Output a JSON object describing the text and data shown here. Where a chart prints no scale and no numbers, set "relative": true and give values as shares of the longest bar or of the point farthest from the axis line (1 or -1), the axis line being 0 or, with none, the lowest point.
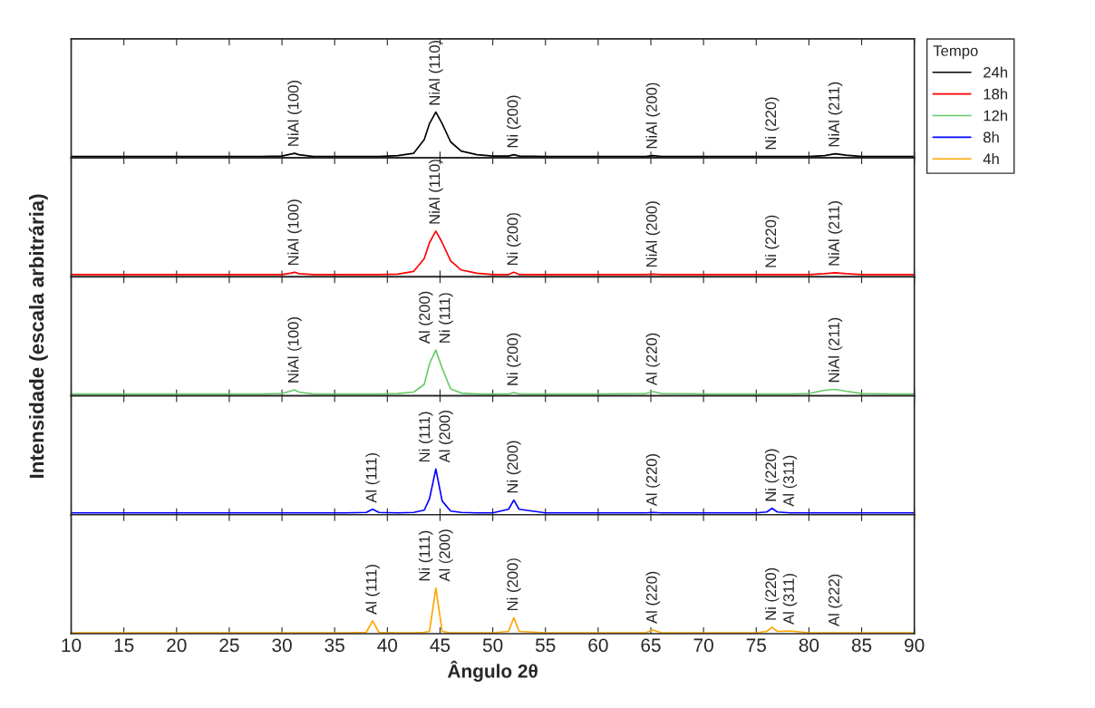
{
  "chart_data": [
    {
      "type": "line",
      "relative": true,
      "xlim": [
        10,
        90
      ],
      "xticks": [
        10,
        15,
        20,
        25,
        30,
        35,
        40,
        45,
        50,
        55,
        60,
        65,
        70,
        75,
        80,
        85,
        90
      ],
      "tick_labels": false,
      "legend": "right",
      "legend_title": "Tempo",
      "x": [
        10,
        12,
        15,
        18,
        20,
        25,
        28,
        30,
        30.8,
        31.2,
        31.6,
        33,
        36,
        38,
        38.6,
        39.2,
        41,
        42.5,
        43.5,
        44,
        44.6,
        45.2,
        46,
        47,
        48.5,
        50,
        51.5,
        52,
        52.5,
        55,
        60,
        64.5,
        65.2,
        66,
        70,
        75,
        76,
        76.5,
        77,
        78.2,
        80,
        81.5,
        82.5,
        83.5,
        85,
        88,
        90
      ],
      "series": [
        {
          "name": "24h",
          "color": "#000000",
          "values": [
            0.03,
            0.03,
            0.03,
            0.03,
            0.03,
            0.03,
            0.03,
            0.04,
            0.08,
            0.1,
            0.07,
            0.03,
            0.03,
            0.03,
            0.03,
            0.03,
            0.05,
            0.1,
            0.4,
            0.75,
            1,
            0.75,
            0.35,
            0.15,
            0.07,
            0.04,
            0.04,
            0.07,
            0.04,
            0.03,
            0.03,
            0.03,
            0.05,
            0.03,
            0.03,
            0.03,
            0.03,
            0.03,
            0.03,
            0.03,
            0.03,
            0.05,
            0.09,
            0.06,
            0.03,
            0.03,
            0.03
          ]
        }
      ],
      "annotations": [
        {
          "text": "NiAl (100)",
          "x": 31.2,
          "y": 0.1
        },
        {
          "text": "NiAl (110)",
          "x": 44.6,
          "y": 1
        },
        {
          "text": "Ni (200)",
          "x": 52,
          "y": 0.07
        },
        {
          "text": "NiAl (200)",
          "x": 65.2,
          "y": 0.05
        },
        {
          "text": "Ni (220)",
          "x": 76.5,
          "y": 0.03
        },
        {
          "text": "NiAl (211)",
          "x": 82.5,
          "y": 0.09
        }
      ]
    },
    {
      "type": "line",
      "relative": true,
      "xlim": [
        10,
        90
      ],
      "xticks": [
        10,
        15,
        20,
        25,
        30,
        35,
        40,
        45,
        50,
        55,
        60,
        65,
        70,
        75,
        80,
        85,
        90
      ],
      "tick_labels": false,
      "x": [
        10,
        12,
        15,
        18,
        20,
        25,
        28,
        30,
        30.8,
        31.2,
        31.6,
        33,
        36,
        38,
        38.6,
        39.2,
        41,
        42.5,
        43.5,
        44,
        44.6,
        45.2,
        46,
        47,
        48.5,
        50,
        51.5,
        52,
        52.5,
        55,
        60,
        64.5,
        65.2,
        66,
        70,
        75,
        76,
        76.5,
        77,
        78.2,
        80,
        81.5,
        82.5,
        83.5,
        85,
        88,
        90
      ],
      "series": [
        {
          "name": "18h",
          "color": "#ff0000",
          "values": [
            0.05,
            0.05,
            0.05,
            0.05,
            0.05,
            0.05,
            0.05,
            0.05,
            0.08,
            0.1,
            0.07,
            0.05,
            0.05,
            0.05,
            0.05,
            0.05,
            0.06,
            0.12,
            0.4,
            0.75,
            1,
            0.75,
            0.35,
            0.15,
            0.08,
            0.05,
            0.05,
            0.1,
            0.05,
            0.05,
            0.05,
            0.05,
            0.06,
            0.05,
            0.05,
            0.05,
            0.05,
            0.05,
            0.05,
            0.05,
            0.05,
            0.07,
            0.09,
            0.07,
            0.05,
            0.05,
            0.05
          ]
        }
      ],
      "annotations": [
        {
          "text": "NiAl (100)",
          "x": 31.2,
          "y": 0.1
        },
        {
          "text": "NiAl (110)",
          "x": 44.6,
          "y": 1
        },
        {
          "text": "Ni (200)",
          "x": 52,
          "y": 0.1
        },
        {
          "text": "NiAl (200)",
          "x": 65.2,
          "y": 0.06
        },
        {
          "text": "Ni (220)",
          "x": 76.5,
          "y": 0.05
        },
        {
          "text": "NiAl (211)",
          "x": 82.5,
          "y": 0.09
        }
      ]
    },
    {
      "type": "line",
      "relative": true,
      "xlim": [
        10,
        90
      ],
      "xticks": [
        10,
        15,
        20,
        25,
        30,
        35,
        40,
        45,
        50,
        55,
        60,
        65,
        70,
        75,
        80,
        85,
        90
      ],
      "tick_labels": false,
      "ylabel": "Intensidade (escala arbitrária)",
      "x": [
        10,
        12,
        15,
        18,
        20,
        25,
        28,
        30,
        30.8,
        31.2,
        31.6,
        33,
        36,
        38,
        38.6,
        39.2,
        41,
        42.5,
        43.5,
        44,
        44.6,
        45.2,
        46,
        47,
        48.5,
        50,
        51.5,
        52,
        52.5,
        55,
        60,
        64.5,
        65.2,
        66,
        70,
        75,
        76,
        76.5,
        77,
        78.2,
        80,
        81.5,
        82.5,
        83.5,
        85,
        88,
        90
      ],
      "series": [
        {
          "name": "12h",
          "color": "#66cc66",
          "values": [
            0.04,
            0.04,
            0.04,
            0.04,
            0.04,
            0.04,
            0.04,
            0.05,
            0.1,
            0.13,
            0.08,
            0.04,
            0.04,
            0.04,
            0.04,
            0.04,
            0.05,
            0.08,
            0.25,
            0.7,
            1,
            0.6,
            0.15,
            0.06,
            0.04,
            0.04,
            0.04,
            0.07,
            0.04,
            0.04,
            0.04,
            0.05,
            0.09,
            0.05,
            0.04,
            0.04,
            0.04,
            0.04,
            0.04,
            0.04,
            0.05,
            0.12,
            0.14,
            0.1,
            0.05,
            0.04,
            0.04
          ]
        }
      ],
      "annotations": [
        {
          "text": "NiAl (100)",
          "x": 31.2,
          "y": 0.13
        },
        {
          "text": "Al (200)",
          "x": 44.6,
          "y": 1
        },
        {
          "text": "Ni (111)",
          "x": 44.6,
          "y": 1
        },
        {
          "text": "Ni (200)",
          "x": 52,
          "y": 0.07
        },
        {
          "text": "Al (220)",
          "x": 65.2,
          "y": 0.09
        },
        {
          "text": "NiAl (211)",
          "x": 82.5,
          "y": 0.14
        }
      ]
    },
    {
      "type": "line",
      "relative": true,
      "xlim": [
        10,
        90
      ],
      "xticks": [
        10,
        15,
        20,
        25,
        30,
        35,
        40,
        45,
        50,
        55,
        60,
        65,
        70,
        75,
        80,
        85,
        90
      ],
      "tick_labels": false,
      "x": [
        10,
        12,
        15,
        18,
        20,
        25,
        28,
        30,
        30.8,
        31.2,
        31.6,
        33,
        36,
        38,
        38.6,
        39.2,
        41,
        42.5,
        43.5,
        44,
        44.6,
        45.2,
        46,
        47,
        48.5,
        50,
        51.5,
        52,
        52.5,
        55,
        60,
        64.5,
        65.2,
        66,
        70,
        75,
        76,
        76.5,
        77,
        78.2,
        80,
        81.5,
        82.5,
        83.5,
        85,
        88,
        90
      ],
      "series": [
        {
          "name": "8h",
          "color": "#0000ff",
          "values": [
            0.04,
            0.04,
            0.04,
            0.04,
            0.04,
            0.04,
            0.04,
            0.04,
            0.04,
            0.04,
            0.04,
            0.04,
            0.04,
            0.05,
            0.12,
            0.05,
            0.04,
            0.05,
            0.1,
            0.35,
            1,
            0.3,
            0.08,
            0.05,
            0.04,
            0.04,
            0.12,
            0.32,
            0.12,
            0.04,
            0.04,
            0.04,
            0.05,
            0.04,
            0.04,
            0.04,
            0.06,
            0.14,
            0.06,
            0.04,
            0.04,
            0.04,
            0.04,
            0.04,
            0.04,
            0.04,
            0.04
          ]
        }
      ],
      "annotations": [
        {
          "text": "Al (111)",
          "x": 38.6,
          "y": 0.12
        },
        {
          "text": "Ni (111)",
          "x": 44.6,
          "y": 1
        },
        {
          "text": "Al (200)",
          "x": 44.6,
          "y": 1
        },
        {
          "text": "Ni (200)",
          "x": 52,
          "y": 0.32
        },
        {
          "text": "Al (220)",
          "x": 65.2,
          "y": 0.05
        },
        {
          "text": "Ni (220)",
          "x": 76.5,
          "y": 0.14
        },
        {
          "text": "Al (311)",
          "x": 78.2,
          "y": 0.04
        }
      ]
    },
    {
      "type": "line",
      "relative": true,
      "xlim": [
        10,
        90
      ],
      "xticks": [
        10,
        15,
        20,
        25,
        30,
        35,
        40,
        45,
        50,
        55,
        60,
        65,
        70,
        75,
        80,
        85,
        90
      ],
      "tick_labels": "x",
      "xlabel": "Ângulo 2θ",
      "x": [
        10,
        12,
        15,
        18,
        20,
        25,
        28,
        30,
        30.8,
        31.2,
        31.6,
        33,
        36,
        38,
        38.6,
        39.2,
        41,
        42.5,
        43.5,
        44,
        44.6,
        45.2,
        46,
        47,
        48.5,
        50,
        51.5,
        52,
        52.5,
        55,
        60,
        64.5,
        65.2,
        66,
        70,
        75,
        76,
        76.5,
        77,
        78.2,
        80,
        81.5,
        82.5,
        83.5,
        85,
        88,
        90
      ],
      "series": [
        {
          "name": "4h",
          "color": "#ffa500",
          "values": [
            0.02,
            0.02,
            0.02,
            0.02,
            0.02,
            0.02,
            0.02,
            0.02,
            0.02,
            0.02,
            0.02,
            0.02,
            0.02,
            0.03,
            0.28,
            0.03,
            0.02,
            0.02,
            0.03,
            0.05,
            1,
            0.05,
            0.02,
            0.02,
            0.02,
            0.02,
            0.05,
            0.35,
            0.05,
            0.02,
            0.02,
            0.02,
            0.08,
            0.02,
            0.02,
            0.02,
            0.05,
            0.14,
            0.05,
            0.06,
            0.02,
            0.02,
            0.02,
            0.02,
            0.02,
            0.02,
            0.02
          ]
        }
      ],
      "annotations": [
        {
          "text": "Al (111)",
          "x": 38.6,
          "y": 0.28
        },
        {
          "text": "Ni (111)",
          "x": 44.6,
          "y": 1
        },
        {
          "text": "Al (200)",
          "x": 44.6,
          "y": 1
        },
        {
          "text": "Ni (200)",
          "x": 52,
          "y": 0.35
        },
        {
          "text": "Al (220)",
          "x": 65.2,
          "y": 0.08
        },
        {
          "text": "Ni (220)",
          "x": 76.5,
          "y": 0.14
        },
        {
          "text": "Al (311)",
          "x": 78.2,
          "y": 0.06
        },
        {
          "text": "Al (222)",
          "x": 82.5,
          "y": 0.02
        }
      ]
    }
  ]
}
